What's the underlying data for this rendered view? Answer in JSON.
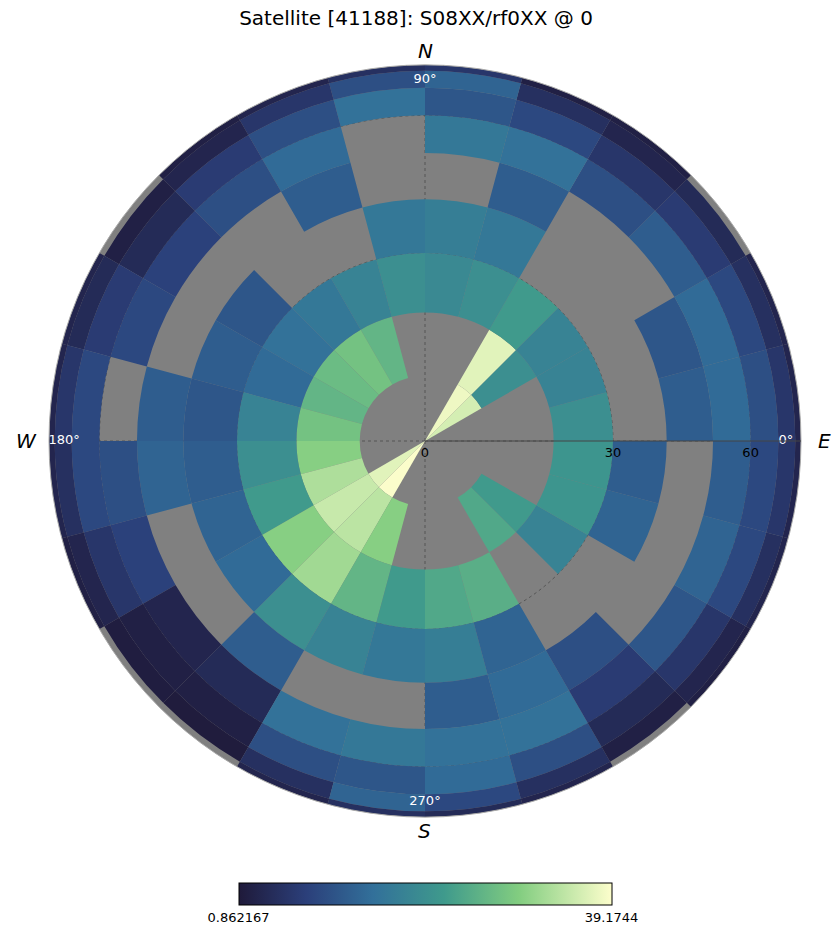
{
  "chart_data": {
    "type": "polar_heatmap",
    "title": "Satellite [41188]: S08XX/rf0XX @ 0",
    "azimuth_edges": [
      0,
      15,
      30,
      45,
      60,
      75,
      90,
      105,
      120,
      135,
      150,
      165,
      180,
      195,
      210,
      225,
      240,
      255,
      270,
      285,
      300,
      315,
      330,
      345,
      360
    ],
    "zenith_edges": [
      0,
      10,
      20,
      30,
      40,
      50,
      60,
      70,
      80,
      90
    ],
    "cells": [
      [
        null,
        null,
        20,
        null,
        12,
        14,
        10,
        6,
        3
      ],
      [
        null,
        null,
        18,
        null,
        11,
        14,
        9,
        5,
        3
      ],
      [
        36,
        20,
        18,
        null,
        null,
        12,
        7,
        4,
        null
      ],
      [
        38,
        37,
        22,
        null,
        null,
        10,
        6,
        3,
        2
      ],
      [
        null,
        null,
        20,
        16,
        12,
        15,
        9,
        5,
        2
      ],
      [
        null,
        null,
        19,
        17,
        null,
        16,
        11,
        13,
        6
      ],
      [
        null,
        null,
        20,
        16,
        null,
        null,
        15,
        10,
        5
      ],
      [
        null,
        26,
        18,
        null,
        12,
        14,
        10,
        6,
        3
      ],
      [
        null,
        28,
        16,
        null,
        null,
        10,
        7,
        3,
        2
      ],
      [
        null,
        27,
        15,
        11,
        null,
        8,
        4,
        2,
        null
      ],
      [
        null,
        26,
        14,
        12,
        null,
        9,
        7,
        4,
        3
      ],
      [
        null,
        28,
        18,
        11,
        12,
        null,
        9,
        6,
        3
      ],
      [
        null,
        30,
        20,
        12,
        13,
        10,
        9,
        5,
        3
      ],
      [
        null,
        33,
        22,
        13,
        null,
        8,
        6,
        3,
        2
      ],
      [
        37,
        35,
        30,
        14,
        null,
        3,
        2,
        1.5,
        null
      ],
      [
        39,
        34,
        32,
        20,
        12,
        4,
        2,
        1.2,
        null
      ],
      [
        null,
        30,
        26,
        18,
        null,
        15,
        10,
        5,
        3
      ],
      [
        null,
        null,
        22,
        16,
        null,
        16,
        11,
        13,
        5
      ],
      [
        null,
        null,
        24,
        17,
        12,
        15,
        14,
        9,
        4
      ],
      [
        null,
        null,
        25,
        13,
        14,
        15,
        10,
        5,
        3
      ],
      [
        null,
        24,
        null,
        null,
        10,
        7,
        4,
        2,
        null
      ],
      [
        null,
        22,
        18,
        null,
        null,
        11,
        6,
        3,
        2
      ],
      [
        null,
        null,
        21,
        13,
        null,
        13,
        9,
        5,
        3
      ],
      [
        null,
        null,
        21,
        12,
        null,
        12,
        9,
        6,
        3
      ]
    ],
    "rlim": [
      0,
      90
    ],
    "rticks": [
      0,
      30,
      60
    ],
    "theta_ticks": [
      {
        "value": 0,
        "label": "0°"
      },
      {
        "value": 90,
        "label": "90°"
      },
      {
        "value": 180,
        "label": "180°"
      },
      {
        "value": 270,
        "label": "270°"
      }
    ],
    "compass": [
      {
        "angle": 90,
        "label": "N"
      },
      {
        "angle": 0,
        "label": "E"
      },
      {
        "angle": 270,
        "label": "S"
      },
      {
        "angle": 180,
        "label": "W"
      }
    ],
    "colorbar": {
      "range": [
        0.862167,
        39.1744
      ],
      "ticks": [
        0.862167,
        39.1744
      ]
    },
    "grid": true
  }
}
